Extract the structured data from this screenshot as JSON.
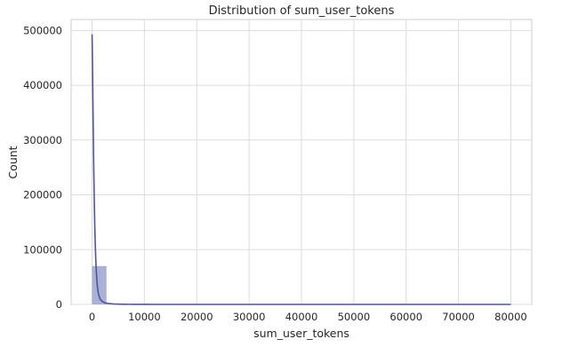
{
  "chart_data": {
    "type": "bar",
    "title": "Distribution of sum_user_tokens",
    "xlabel": "sum_user_tokens",
    "ylabel": "Count",
    "xlim": [
      -4000,
      84000
    ],
    "ylim": [
      0,
      520000
    ],
    "xticks": [
      0,
      10000,
      20000,
      30000,
      40000,
      50000,
      60000,
      70000,
      80000
    ],
    "xtick_labels": [
      "0",
      "10000",
      "20000",
      "30000",
      "40000",
      "50000",
      "60000",
      "70000",
      "80000"
    ],
    "yticks": [
      0,
      100000,
      200000,
      300000,
      400000,
      500000
    ],
    "ytick_labels": [
      "0",
      "100000",
      "200000",
      "300000",
      "400000",
      "500000"
    ],
    "grid": true,
    "histogram": {
      "bin_width": 2750,
      "bins": [
        {
          "x0": 0,
          "x1": 2750,
          "count": 70000
        },
        {
          "x0": 2750,
          "x1": 5500,
          "count": 1200
        }
      ],
      "bar_color": "#8c97c6",
      "bar_opacity": 0.75
    },
    "kde": {
      "color": "#4c55a8",
      "x": [
        0,
        100,
        200,
        300,
        400,
        500,
        600,
        700,
        800,
        900,
        1000,
        1200,
        1500,
        2000,
        2500,
        3000,
        4000,
        5000,
        6000,
        7000,
        8000,
        9000,
        10000,
        12000,
        15000,
        20000,
        80000
      ],
      "y": [
        493000,
        420000,
        340000,
        262000,
        200000,
        150000,
        112000,
        84000,
        62000,
        46000,
        34000,
        20000,
        10000,
        5000,
        2800,
        1800,
        900,
        500,
        300,
        200,
        120,
        80,
        50,
        20,
        5,
        0,
        0
      ]
    }
  }
}
